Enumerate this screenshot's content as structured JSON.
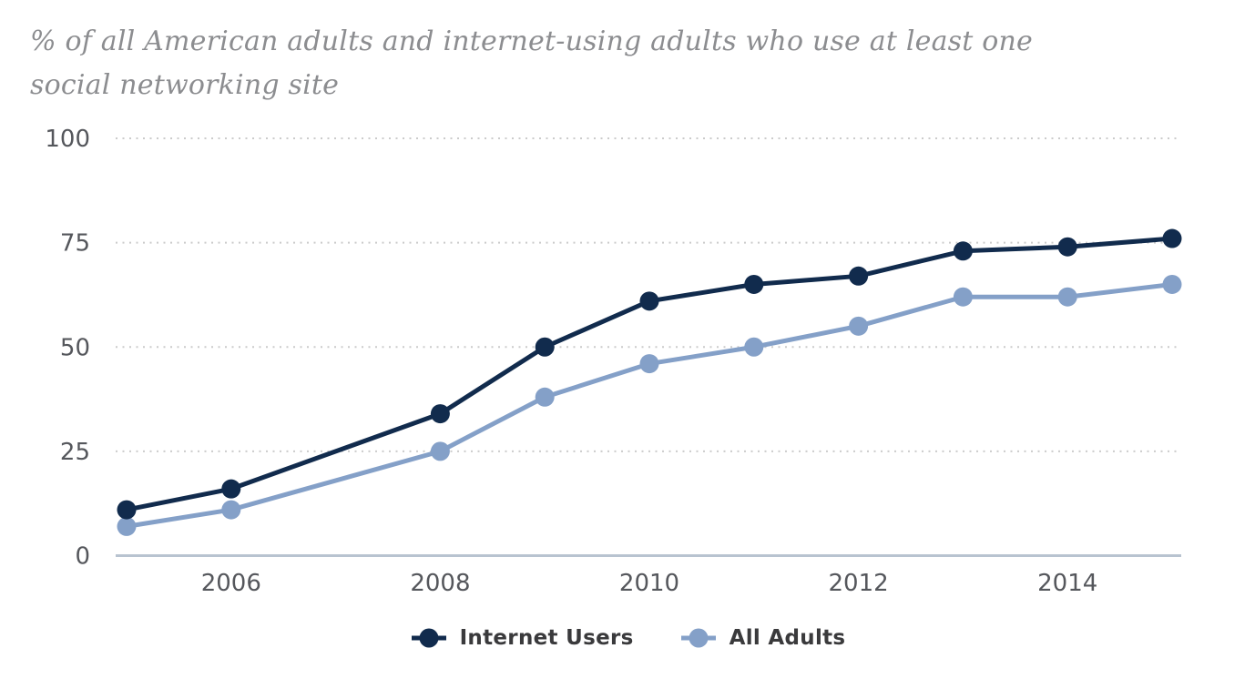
{
  "chart_data": {
    "type": "line",
    "title": "% of all American adults and internet-using adults who use at least one social networking site",
    "x": [
      2005,
      2006,
      2008,
      2009,
      2010,
      2011,
      2012,
      2013,
      2014,
      2015
    ],
    "series": [
      {
        "name": "Internet Users",
        "color": "#112b4d",
        "values": [
          11,
          16,
          34,
          50,
          61,
          65,
          67,
          73,
          74,
          76
        ]
      },
      {
        "name": "All Adults",
        "color": "#84a0c8",
        "values": [
          7,
          11,
          25,
          38,
          46,
          50,
          55,
          62,
          62,
          65
        ]
      }
    ],
    "xlabel": "",
    "ylabel": "",
    "ylim": [
      0,
      100
    ],
    "yticks": [
      0,
      25,
      50,
      75,
      100
    ],
    "xticks": [
      2006,
      2008,
      2010,
      2012,
      2014
    ],
    "grid": "horizontal-dotted",
    "legend_position": "bottom-center"
  },
  "colors": {
    "background": "#ffffff",
    "title_text": "#8c8d90",
    "tick_label": "#55575c",
    "gridline": "#cbcbcb",
    "baseline": "#b8c3d0",
    "legend_text": "#3a3a3c"
  }
}
